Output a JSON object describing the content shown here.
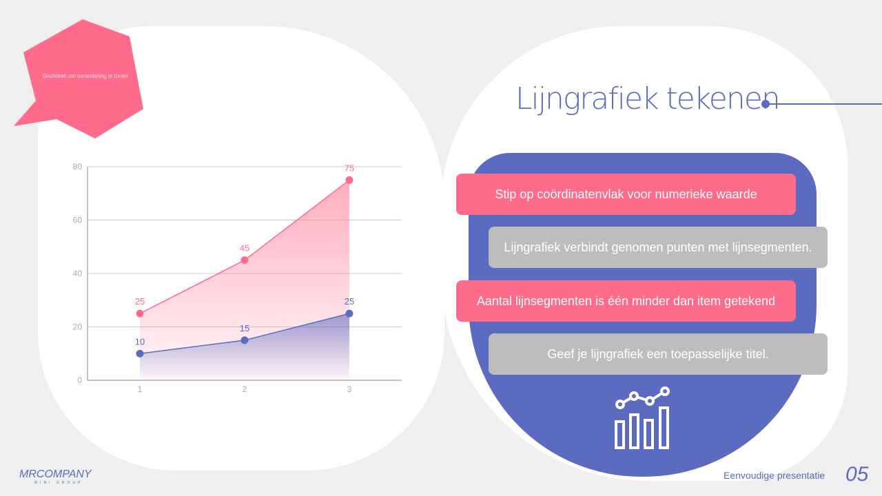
{
  "bubble": {
    "text": "Grafieken om verandering te tonen"
  },
  "title": "Lijngrafiek tekenen",
  "cards": [
    {
      "text": "Stip op coördinatenvlak voor numerieke waarde",
      "style": "pink"
    },
    {
      "text": "Lijngrafiek verbindt genomen punten met lijnsegmenten.",
      "style": "grey"
    },
    {
      "text": "Aantal lijnsegmenten is één minder dan item getekend",
      "style": "pink"
    },
    {
      "text": "Geef je lijngrafiek een toepasselijke titel.",
      "style": "grey"
    }
  ],
  "icon": "line-bar-chart-icon",
  "logo": {
    "name": "MRCOMPANY",
    "sub": "MINI GROUP"
  },
  "footer": {
    "text": "Eenvoudige presentatie",
    "page": "05"
  },
  "colors": {
    "pink": "#ff6b8b",
    "blue": "#5b6bbf",
    "grey": "#bdbdbd"
  },
  "chart_data": {
    "type": "area",
    "categories": [
      "1",
      "2",
      "3"
    ],
    "series": [
      {
        "values": [
          25,
          45,
          75
        ],
        "color": "#ff6b8b"
      },
      {
        "values": [
          10,
          15,
          25
        ],
        "color": "#5b6bbf"
      }
    ],
    "yticks": [
      0,
      20,
      40,
      60,
      80
    ],
    "ylim": [
      0,
      80
    ],
    "grid": true,
    "data_labels": true
  }
}
